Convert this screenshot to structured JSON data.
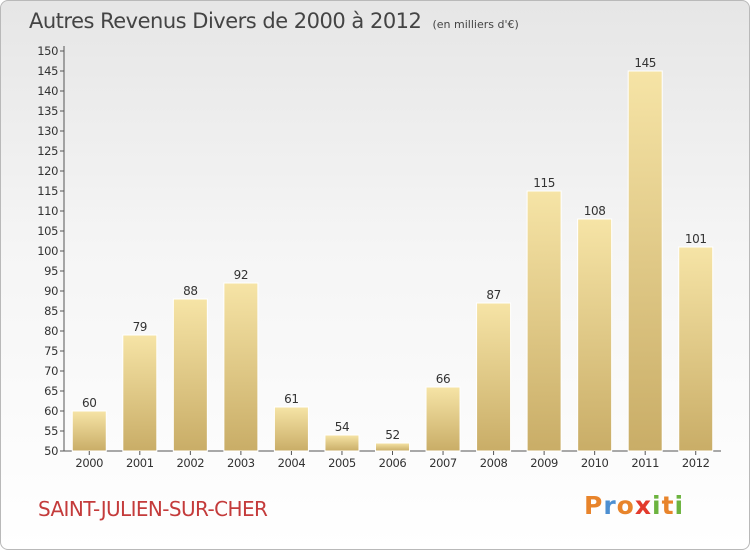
{
  "header": {
    "title": "Autres Revenus Divers de 2000 à 2012",
    "subtitle": "(en milliers d'€)"
  },
  "footer": {
    "town": "SAINT-JULIEN-SUR-CHER",
    "logo_text": "Proxiti"
  },
  "colors": {
    "bar_top": "#f6e4a6",
    "bar_bottom": "#c9ad67",
    "title": "#444444",
    "town": "#c43b3b",
    "logo": [
      "#e8842b",
      "#4d8fd1",
      "#e8842b",
      "#e33a2c",
      "#6cb33f",
      "#e8842b",
      "#6cb33f"
    ]
  },
  "chart_data": {
    "type": "bar",
    "title": "Autres Revenus Divers de 2000 à 2012",
    "subtitle": "(en milliers d'€)",
    "categories": [
      "2000",
      "2001",
      "2002",
      "2003",
      "2004",
      "2005",
      "2006",
      "2007",
      "2008",
      "2009",
      "2010",
      "2011",
      "2012"
    ],
    "values": [
      60,
      79,
      88,
      92,
      61,
      54,
      52,
      66,
      87,
      115,
      108,
      145,
      101
    ],
    "ylim": [
      50,
      150
    ],
    "yticks": [
      50,
      55,
      60,
      65,
      70,
      75,
      80,
      85,
      90,
      95,
      100,
      105,
      110,
      115,
      120,
      125,
      130,
      135,
      140,
      145,
      150
    ],
    "grid": false,
    "data_labels": true
  }
}
